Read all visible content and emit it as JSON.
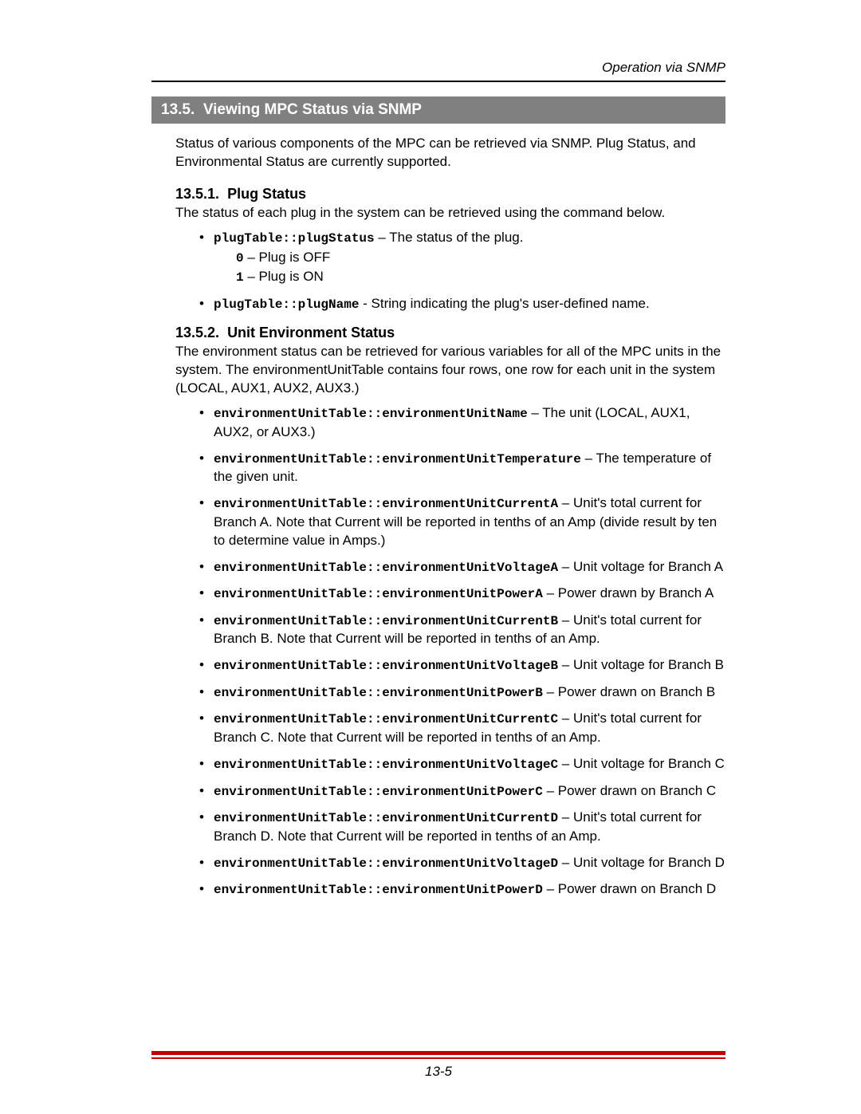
{
  "runningHead": "Operation via SNMP",
  "section": {
    "number": "13.5.",
    "title": "Viewing MPC Status via SNMP"
  },
  "intro": "Status of various components of the MPC can be retrieved via SNMP.  Plug Status, and Environmental Status are currently supported.",
  "sub1": {
    "number": "13.5.1.",
    "title": "Plug Status",
    "intro": "The status of each plug in the system can be retrieved using the command below.",
    "items": [
      {
        "code": "plugTable::plugStatus",
        "sep": " – ",
        "desc": "The status of the plug.",
        "subA": "0 – Plug is OFF",
        "subB": "1 – Plug is ON"
      },
      {
        "code": "plugTable::plugName",
        "sep": " - ",
        "desc": "String indicating the plug's user-defined name."
      }
    ]
  },
  "sub2": {
    "number": "13.5.2.",
    "title": "Unit Environment Status",
    "intro": "The environment status can be retrieved for various variables for all of the MPC units in the system.  The environmentUnitTable contains four rows, one row for each unit in the system (LOCAL, AUX1, AUX2, AUX3.)",
    "items": [
      {
        "code": "environmentUnitTable::environmentUnitName",
        "sep": " – ",
        "desc": "The unit (LOCAL, AUX1, AUX2, or AUX3.)"
      },
      {
        "code": "environmentUnitTable::environmentUnitTemperature",
        "sep": " – ",
        "desc": "The temperature of the given unit."
      },
      {
        "code": "environmentUnitTable::environmentUnitCurrentA",
        "sep": " – ",
        "desc": "Unit's total current for Branch A.  Note that Current will be reported in tenths of an Amp (divide result by ten to determine value in Amps.)"
      },
      {
        "code": "environmentUnitTable::environmentUnitVoltageA",
        "sep": " – ",
        "desc": "Unit voltage for Branch A"
      },
      {
        "code": "environmentUnitTable::environmentUnitPowerA",
        "sep": " – ",
        "desc": "Power drawn by Branch A"
      },
      {
        "code": "environmentUnitTable::environmentUnitCurrentB",
        "sep": " – ",
        "desc": "Unit's total current for Branch B.  Note that Current will be reported in tenths of an Amp."
      },
      {
        "code": "environmentUnitTable::environmentUnitVoltageB",
        "sep": " – ",
        "desc": "Unit voltage for Branch B"
      },
      {
        "code": "environmentUnitTable::environmentUnitPowerB",
        "sep": " – ",
        "desc": "Power drawn on Branch B"
      },
      {
        "code": "environmentUnitTable::environmentUnitCurrentC",
        "sep": " – ",
        "desc": "Unit's total current for Branch C.  Note that Current will be reported in tenths of an Amp."
      },
      {
        "code": "environmentUnitTable::environmentUnitVoltageC",
        "sep": " – ",
        "desc": "Unit voltage for Branch C"
      },
      {
        "code": "environmentUnitTable::environmentUnitPowerC",
        "sep": " – ",
        "desc": "Power drawn on Branch C"
      },
      {
        "code": "environmentUnitTable::environmentUnitCurrentD",
        "sep": " – ",
        "desc": "Unit's total current for Branch D.  Note that Current will be reported in tenths of an Amp."
      },
      {
        "code": "environmentUnitTable::environmentUnitVoltageD",
        "sep": " – ",
        "desc": "Unit voltage for Branch D"
      },
      {
        "code": "environmentUnitTable::environmentUnitPowerD",
        "sep": " – ",
        "desc": "Power drawn on Branch D"
      }
    ]
  },
  "pageNumber": "13-5"
}
